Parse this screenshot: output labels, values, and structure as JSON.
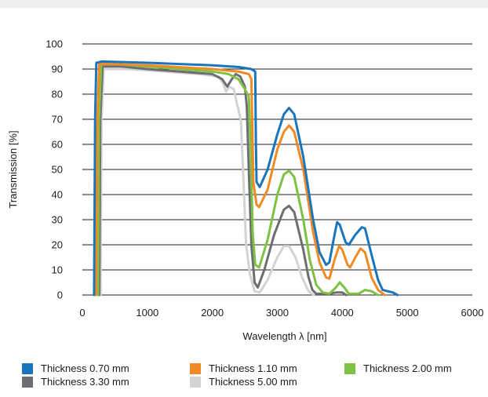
{
  "chart_data": {
    "type": "line",
    "xlabel": "Wavelength λ [nm]",
    "ylabel": "Transmission [%]",
    "xlim": [
      0,
      6000
    ],
    "ylim": [
      0,
      100
    ],
    "x_ticks": [
      "0",
      "1000",
      "2000",
      "3000",
      "4000",
      "5000",
      "6000"
    ],
    "y_ticks": [
      "0",
      "10",
      "20",
      "30",
      "40",
      "50",
      "60",
      "70",
      "80",
      "90",
      "100"
    ],
    "grid": "horizontal",
    "legend_position": "bottom",
    "series": [
      {
        "name": "Thickness 0.70 mm",
        "color": "#1b75bb",
        "points": [
          [
            180,
            0
          ],
          [
            195,
            70
          ],
          [
            215,
            92.5
          ],
          [
            300,
            93
          ],
          [
            1000,
            92.5
          ],
          [
            2000,
            91.5
          ],
          [
            2400,
            90.8
          ],
          [
            2600,
            90
          ],
          [
            2660,
            89
          ],
          [
            2670,
            60
          ],
          [
            2680,
            45
          ],
          [
            2730,
            43
          ],
          [
            2850,
            50
          ],
          [
            3000,
            64
          ],
          [
            3100,
            72
          ],
          [
            3180,
            74.5
          ],
          [
            3260,
            72
          ],
          [
            3400,
            55
          ],
          [
            3550,
            30
          ],
          [
            3650,
            17
          ],
          [
            3750,
            12
          ],
          [
            3800,
            13
          ],
          [
            3880,
            24
          ],
          [
            3920,
            29
          ],
          [
            3960,
            28
          ],
          [
            4050,
            21
          ],
          [
            4100,
            20
          ],
          [
            4200,
            24
          ],
          [
            4300,
            27
          ],
          [
            4350,
            26.5
          ],
          [
            4450,
            16
          ],
          [
            4550,
            6
          ],
          [
            4620,
            2
          ],
          [
            4700,
            1.5
          ],
          [
            4780,
            1
          ],
          [
            4850,
            0
          ]
        ]
      },
      {
        "name": "Thickness 1.10 mm",
        "color": "#f08a24",
        "points": [
          [
            210,
            0
          ],
          [
            230,
            70
          ],
          [
            260,
            92
          ],
          [
            400,
            92
          ],
          [
            1000,
            91.5
          ],
          [
            2000,
            90
          ],
          [
            2400,
            89
          ],
          [
            2560,
            88
          ],
          [
            2600,
            86
          ],
          [
            2620,
            60
          ],
          [
            2630,
            45
          ],
          [
            2680,
            36
          ],
          [
            2720,
            35
          ],
          [
            2850,
            42
          ],
          [
            3000,
            58
          ],
          [
            3100,
            65
          ],
          [
            3180,
            67.5
          ],
          [
            3260,
            65
          ],
          [
            3400,
            50
          ],
          [
            3550,
            25
          ],
          [
            3650,
            13
          ],
          [
            3750,
            7
          ],
          [
            3800,
            6.5
          ],
          [
            3880,
            14
          ],
          [
            3950,
            19.5
          ],
          [
            4000,
            18
          ],
          [
            4080,
            12
          ],
          [
            4120,
            11
          ],
          [
            4200,
            15
          ],
          [
            4280,
            18.5
          ],
          [
            4350,
            17
          ],
          [
            4450,
            7
          ],
          [
            4550,
            2
          ],
          [
            4650,
            0
          ]
        ]
      },
      {
        "name": "Thickness 2.00 mm",
        "color": "#7dc242",
        "points": [
          [
            240,
            0
          ],
          [
            255,
            70
          ],
          [
            290,
            92
          ],
          [
            500,
            92
          ],
          [
            1000,
            91
          ],
          [
            2000,
            89
          ],
          [
            2250,
            88
          ],
          [
            2400,
            86
          ],
          [
            2500,
            82
          ],
          [
            2560,
            79
          ],
          [
            2590,
            60
          ],
          [
            2620,
            25
          ],
          [
            2660,
            12
          ],
          [
            2720,
            11
          ],
          [
            2850,
            22
          ],
          [
            3000,
            40
          ],
          [
            3100,
            48
          ],
          [
            3180,
            49.5
          ],
          [
            3260,
            47
          ],
          [
            3400,
            30
          ],
          [
            3500,
            14
          ],
          [
            3600,
            4
          ],
          [
            3700,
            1
          ],
          [
            3800,
            0.5
          ],
          [
            3900,
            3
          ],
          [
            3960,
            5
          ],
          [
            4030,
            3
          ],
          [
            4100,
            0.5
          ],
          [
            4250,
            0.5
          ],
          [
            4350,
            2
          ],
          [
            4450,
            1.5
          ],
          [
            4550,
            0
          ]
        ]
      },
      {
        "name": "Thickness 3.30 mm",
        "color": "#6d6e71",
        "points": [
          [
            260,
            0
          ],
          [
            275,
            70
          ],
          [
            310,
            91
          ],
          [
            600,
            91
          ],
          [
            1000,
            90
          ],
          [
            2000,
            88
          ],
          [
            2150,
            86
          ],
          [
            2230,
            83
          ],
          [
            2300,
            86
          ],
          [
            2360,
            88
          ],
          [
            2430,
            87
          ],
          [
            2500,
            83
          ],
          [
            2530,
            75
          ],
          [
            2560,
            50
          ],
          [
            2600,
            20
          ],
          [
            2650,
            5
          ],
          [
            2700,
            3
          ],
          [
            2800,
            10
          ],
          [
            2950,
            24
          ],
          [
            3100,
            34
          ],
          [
            3180,
            35.5
          ],
          [
            3260,
            33
          ],
          [
            3400,
            18
          ],
          [
            3480,
            7
          ],
          [
            3540,
            2
          ],
          [
            3600,
            0.5
          ],
          [
            3800,
            0.5
          ],
          [
            3900,
            1
          ],
          [
            4000,
            1
          ],
          [
            4060,
            0
          ]
        ]
      },
      {
        "name": "Thickness 5.00 mm",
        "color": "#d1d3d4",
        "points": [
          [
            280,
            0
          ],
          [
            295,
            70
          ],
          [
            330,
            90
          ],
          [
            700,
            90
          ],
          [
            1000,
            89.5
          ],
          [
            1800,
            88
          ],
          [
            2100,
            87
          ],
          [
            2170,
            84
          ],
          [
            2210,
            81
          ],
          [
            2260,
            83
          ],
          [
            2330,
            82
          ],
          [
            2380,
            76
          ],
          [
            2410,
            73
          ],
          [
            2440,
            69
          ],
          [
            2480,
            45
          ],
          [
            2520,
            20
          ],
          [
            2580,
            8
          ],
          [
            2650,
            1.5
          ],
          [
            2730,
            1
          ],
          [
            2850,
            6
          ],
          [
            3000,
            15
          ],
          [
            3100,
            19.5
          ],
          [
            3180,
            19.5
          ],
          [
            3280,
            15
          ],
          [
            3380,
            7
          ],
          [
            3480,
            1.5
          ],
          [
            3560,
            0
          ]
        ]
      }
    ]
  }
}
